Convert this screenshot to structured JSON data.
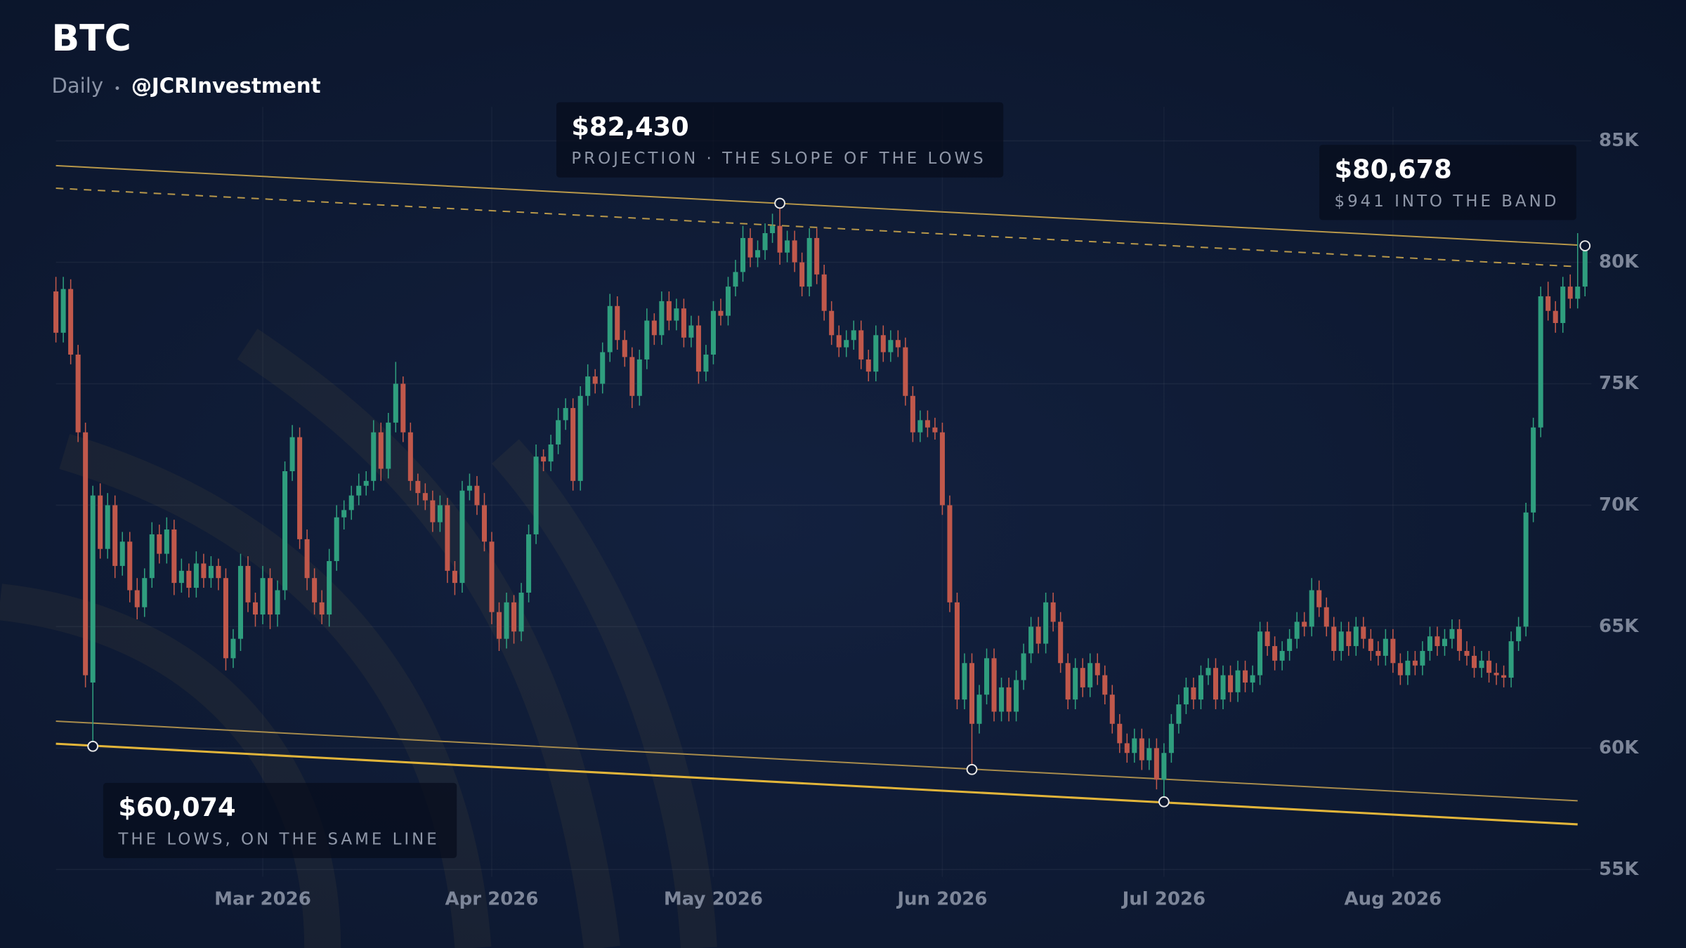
{
  "chart_data": {
    "type": "candlestick",
    "title": "BTC",
    "subtitle": "Daily",
    "source": "@JCRInvestment",
    "categories": [
      null,
      null,
      null,
      null,
      null,
      null,
      null,
      null,
      null,
      null,
      null,
      null,
      null,
      null,
      null,
      null,
      null,
      null,
      null,
      null,
      null,
      null,
      null,
      null,
      null,
      null,
      null,
      null,
      "Mar 2026",
      null,
      null,
      null,
      null,
      null,
      null,
      null,
      null,
      null,
      null,
      null,
      null,
      null,
      null,
      null,
      null,
      null,
      null,
      null,
      null,
      null,
      null,
      null,
      null,
      null,
      null,
      null,
      null,
      null,
      null,
      "Apr 2026",
      null,
      null,
      null,
      null,
      null,
      null,
      null,
      null,
      null,
      null,
      null,
      null,
      null,
      null,
      null,
      null,
      null,
      null,
      null,
      null,
      null,
      null,
      null,
      null,
      null,
      null,
      null,
      null,
      null,
      "May 2026",
      null,
      null,
      null,
      null,
      null,
      null,
      null,
      null,
      null,
      null,
      null,
      null,
      null,
      null,
      null,
      null,
      null,
      null,
      null,
      null,
      null,
      null,
      null,
      null,
      null,
      null,
      null,
      null,
      null,
      null,
      "Jun 2026",
      null,
      null,
      null,
      null,
      null,
      null,
      null,
      null,
      null,
      null,
      null,
      null,
      null,
      null,
      null,
      null,
      null,
      null,
      null,
      null,
      null,
      null,
      null,
      null,
      null,
      null,
      null,
      null,
      null,
      "Jul 2026",
      null,
      null,
      null,
      null,
      null,
      null,
      null,
      null,
      null,
      null,
      null,
      null,
      null,
      null,
      null,
      null,
      null,
      null,
      null,
      null,
      null,
      null,
      null,
      null,
      null,
      null,
      null,
      null,
      null,
      null,
      "Aug 2026",
      null,
      null,
      null,
      null,
      null,
      null,
      null,
      null,
      null,
      null,
      null,
      null,
      null,
      null,
      null,
      null,
      null,
      null,
      null,
      null,
      null,
      null,
      null,
      null,
      null,
      null
    ],
    "open": [
      78.8,
      77.1,
      78.9,
      76.2,
      73.0,
      62.7,
      70.4,
      68.2,
      70.0,
      67.5,
      68.5,
      66.5,
      65.8,
      67.0,
      68.8,
      68.0,
      69.0,
      66.8,
      67.3,
      66.6,
      67.6,
      67.0,
      67.5,
      67.0,
      63.7,
      64.5,
      67.5,
      66.0,
      65.5,
      67.0,
      65.5,
      66.5,
      71.4,
      72.8,
      68.6,
      67.0,
      66.0,
      65.5,
      67.7,
      69.5,
      69.8,
      70.4,
      70.8,
      71.0,
      73.0,
      71.5,
      73.4,
      75.0,
      73.0,
      71.0,
      70.5,
      70.2,
      69.3,
      70.0,
      67.3,
      66.8,
      70.6,
      70.8,
      70.0,
      68.5,
      65.6,
      64.5,
      66.0,
      64.8,
      66.4,
      68.8,
      72.0,
      71.8,
      72.5,
      73.5,
      74.0,
      71.0,
      74.5,
      75.3,
      75.0,
      76.3,
      78.2,
      76.8,
      76.1,
      74.5,
      76.0,
      77.6,
      77.0,
      78.4,
      77.6,
      78.1,
      76.9,
      77.4,
      75.5,
      76.2,
      78.0,
      77.8,
      79.0,
      79.6,
      81.0,
      80.2,
      80.5,
      81.2,
      81.5,
      80.4,
      80.9,
      80.0,
      79.0,
      81.0,
      79.5,
      78.0,
      77.0,
      76.5,
      76.8,
      77.2,
      76.0,
      75.5,
      77.0,
      76.3,
      76.8,
      76.5,
      74.5,
      73.0,
      73.5,
      73.2,
      73.0,
      70.0,
      66.0,
      62.0,
      63.5,
      61.0,
      62.2,
      63.7,
      61.5,
      62.5,
      61.5,
      62.8,
      63.9,
      65.0,
      64.3,
      66.0,
      65.2,
      63.5,
      62.0,
      63.3,
      62.5,
      63.5,
      63.0,
      62.2,
      61.0,
      60.2,
      59.8,
      60.4,
      59.5,
      60.0,
      58.7,
      59.8,
      61.0,
      61.8,
      62.5,
      62.0,
      63.0,
      63.3,
      62.0,
      63.0,
      62.3,
      63.2,
      62.7,
      63.0,
      64.8,
      64.2,
      63.6,
      64.0,
      64.5,
      65.2,
      65.0,
      66.5,
      65.8,
      65.0,
      64.0,
      64.8,
      64.2,
      65.0,
      64.5,
      64.0,
      63.8,
      64.5,
      63.5,
      63.0,
      63.6,
      63.4,
      64.0,
      64.6,
      64.2,
      64.5,
      64.9,
      64.0,
      63.8,
      63.3,
      63.6,
      63.1,
      63.0,
      62.9,
      64.4,
      65.0,
      69.7,
      73.2,
      78.6,
      78.0,
      77.5,
      79.0,
      78.5,
      79.0
    ],
    "high": [
      79.4,
      79.4,
      79.3,
      76.6,
      73.4,
      70.8,
      70.9,
      70.5,
      70.4,
      68.9,
      68.9,
      67.0,
      67.4,
      69.3,
      69.2,
      69.5,
      69.4,
      67.8,
      67.6,
      68.1,
      68.0,
      67.9,
      67.8,
      67.4,
      64.9,
      68.0,
      67.9,
      66.4,
      67.5,
      67.4,
      66.9,
      71.8,
      73.3,
      73.2,
      69.0,
      67.4,
      66.5,
      68.2,
      70.0,
      70.2,
      70.8,
      71.3,
      71.4,
      73.5,
      73.4,
      73.8,
      75.9,
      75.3,
      73.4,
      71.3,
      70.9,
      70.6,
      70.4,
      70.3,
      67.7,
      71.0,
      71.3,
      71.2,
      70.5,
      68.9,
      66.0,
      66.4,
      66.3,
      66.8,
      69.2,
      72.5,
      72.3,
      72.9,
      74.0,
      74.4,
      74.4,
      74.9,
      75.8,
      75.6,
      76.7,
      78.7,
      78.6,
      77.2,
      76.5,
      76.4,
      78.1,
      77.9,
      78.8,
      78.8,
      78.5,
      78.5,
      77.8,
      77.8,
      76.6,
      78.4,
      78.5,
      79.4,
      80.1,
      81.5,
      81.4,
      80.9,
      81.6,
      82.0,
      82.43,
      81.3,
      81.3,
      80.4,
      81.4,
      81.4,
      79.9,
      78.4,
      77.4,
      77.2,
      77.6,
      77.6,
      76.4,
      77.4,
      77.4,
      77.2,
      77.2,
      76.9,
      74.9,
      73.9,
      73.9,
      73.6,
      73.4,
      70.4,
      66.4,
      63.9,
      63.9,
      62.6,
      64.1,
      64.1,
      62.9,
      62.9,
      63.2,
      64.3,
      65.4,
      65.4,
      66.4,
      66.4,
      65.6,
      63.9,
      63.7,
      63.7,
      63.9,
      63.9,
      63.4,
      62.6,
      61.4,
      60.6,
      60.8,
      60.8,
      60.4,
      60.4,
      60.2,
      61.4,
      62.2,
      62.9,
      62.9,
      63.4,
      63.7,
      63.7,
      63.4,
      63.4,
      63.6,
      63.6,
      63.4,
      65.2,
      65.2,
      64.6,
      64.4,
      64.9,
      65.6,
      65.6,
      67.0,
      66.9,
      66.2,
      65.4,
      65.2,
      65.2,
      65.4,
      65.4,
      64.9,
      64.4,
      64.9,
      64.9,
      63.9,
      64.0,
      64.0,
      64.4,
      65.0,
      65.0,
      64.9,
      65.3,
      65.3,
      64.4,
      64.2,
      64.0,
      64.0,
      63.5,
      63.4,
      64.8,
      65.4,
      70.1,
      73.6,
      79.0,
      79.2,
      78.4,
      79.4,
      79.5,
      81.2,
      80.68
    ],
    "low": [
      76.7,
      76.7,
      75.8,
      72.6,
      62.5,
      60.07,
      67.8,
      67.8,
      67.0,
      67.1,
      66.0,
      65.3,
      65.4,
      66.6,
      67.6,
      67.6,
      66.3,
      66.4,
      66.2,
      66.2,
      66.6,
      66.6,
      66.5,
      63.2,
      63.3,
      64.0,
      65.6,
      65.0,
      65.1,
      64.9,
      65.0,
      66.1,
      71.0,
      68.2,
      66.5,
      65.5,
      65.1,
      65.0,
      67.3,
      69.0,
      69.4,
      70.0,
      70.4,
      70.6,
      71.0,
      71.1,
      73.0,
      72.6,
      70.6,
      70.0,
      69.8,
      68.9,
      68.9,
      66.8,
      66.3,
      66.4,
      70.2,
      69.6,
      68.1,
      65.1,
      64.0,
      64.1,
      64.3,
      64.4,
      66.0,
      68.4,
      71.4,
      71.4,
      72.1,
      73.1,
      70.6,
      70.6,
      74.1,
      74.6,
      74.6,
      75.9,
      76.4,
      75.7,
      74.0,
      74.1,
      75.6,
      76.6,
      76.6,
      77.2,
      77.2,
      76.5,
      76.5,
      75.0,
      75.1,
      75.8,
      77.4,
      77.4,
      78.6,
      79.2,
      79.8,
      79.8,
      80.1,
      80.8,
      79.9,
      80.0,
      79.6,
      78.6,
      78.6,
      79.1,
      77.6,
      76.6,
      76.1,
      76.1,
      76.4,
      75.6,
      75.1,
      75.1,
      75.9,
      75.9,
      76.1,
      74.1,
      72.6,
      72.6,
      72.8,
      72.7,
      69.6,
      65.6,
      61.6,
      61.6,
      59.1,
      60.6,
      61.8,
      61.1,
      61.1,
      61.1,
      61.1,
      62.4,
      63.5,
      63.9,
      63.9,
      64.8,
      63.1,
      61.6,
      61.6,
      62.1,
      62.1,
      62.6,
      61.8,
      60.6,
      59.8,
      59.4,
      59.4,
      59.1,
      59.1,
      58.3,
      57.79,
      59.4,
      60.6,
      61.4,
      61.6,
      61.6,
      62.6,
      61.6,
      61.6,
      61.9,
      61.9,
      62.3,
      62.3,
      62.6,
      63.8,
      63.2,
      63.2,
      63.6,
      64.1,
      64.6,
      64.6,
      65.4,
      64.6,
      63.6,
      63.6,
      63.8,
      63.8,
      64.1,
      63.6,
      63.4,
      63.4,
      63.1,
      62.6,
      62.6,
      63.0,
      63.0,
      63.6,
      63.8,
      63.8,
      64.1,
      63.6,
      63.4,
      62.9,
      62.9,
      62.7,
      62.6,
      62.5,
      62.5,
      64.0,
      64.6,
      69.3,
      72.8,
      77.6,
      77.1,
      77.1,
      78.1,
      78.1,
      78.6
    ],
    "close": [
      77.1,
      78.9,
      76.2,
      73.0,
      63.0,
      70.4,
      68.2,
      70.0,
      67.5,
      68.5,
      66.5,
      65.8,
      67.0,
      68.8,
      68.0,
      69.0,
      66.8,
      67.3,
      66.6,
      67.6,
      67.0,
      67.5,
      67.0,
      63.7,
      64.5,
      67.5,
      66.0,
      65.5,
      67.0,
      65.5,
      66.5,
      71.4,
      72.8,
      68.6,
      67.0,
      66.0,
      65.5,
      67.7,
      69.5,
      69.8,
      70.4,
      70.8,
      71.0,
      73.0,
      71.5,
      73.4,
      75.0,
      73.0,
      71.0,
      70.5,
      70.2,
      69.3,
      70.0,
      67.3,
      66.8,
      70.6,
      70.8,
      70.0,
      68.5,
      65.6,
      64.5,
      66.0,
      64.8,
      66.4,
      68.8,
      72.0,
      71.8,
      72.5,
      73.5,
      74.0,
      71.0,
      74.5,
      75.3,
      75.0,
      76.3,
      78.2,
      76.8,
      76.1,
      74.5,
      76.0,
      77.6,
      77.0,
      78.4,
      77.6,
      78.1,
      76.9,
      77.4,
      75.5,
      76.2,
      78.0,
      77.8,
      79.0,
      79.6,
      81.0,
      80.2,
      80.5,
      81.2,
      81.5,
      80.4,
      80.9,
      80.0,
      79.0,
      81.0,
      79.5,
      78.0,
      77.0,
      76.5,
      76.8,
      77.2,
      76.0,
      75.5,
      77.0,
      76.3,
      76.8,
      76.5,
      74.5,
      73.0,
      73.5,
      73.2,
      73.0,
      70.0,
      66.0,
      62.0,
      63.5,
      61.0,
      62.2,
      63.7,
      61.5,
      62.5,
      61.5,
      62.8,
      63.9,
      65.0,
      64.3,
      66.0,
      65.2,
      63.5,
      62.0,
      63.3,
      62.5,
      63.5,
      63.0,
      62.2,
      61.0,
      60.2,
      59.8,
      60.4,
      59.5,
      60.0,
      58.7,
      59.8,
      61.0,
      61.8,
      62.5,
      62.0,
      63.0,
      63.3,
      62.0,
      63.0,
      62.3,
      63.2,
      62.7,
      63.0,
      64.8,
      64.2,
      63.6,
      64.0,
      64.5,
      65.2,
      65.0,
      66.5,
      65.8,
      65.0,
      64.0,
      64.8,
      64.2,
      65.0,
      64.5,
      64.0,
      63.8,
      64.5,
      63.5,
      63.0,
      63.6,
      63.4,
      64.0,
      64.6,
      64.2,
      64.5,
      64.9,
      64.0,
      63.8,
      63.3,
      63.6,
      63.1,
      63.0,
      62.9,
      64.4,
      65.0,
      69.7,
      73.2,
      78.6,
      78.0,
      77.5,
      79.0,
      78.5,
      79.0,
      80.6
    ],
    "up_color": "#2f9e7e",
    "down_color": "#c0584b",
    "ylim": [
      54.7,
      86.4
    ],
    "yticks": [
      {
        "value": 55,
        "label": "55K"
      },
      {
        "value": 60,
        "label": "60K"
      },
      {
        "value": 65,
        "label": "65K"
      },
      {
        "value": 70,
        "label": "70K"
      },
      {
        "value": 75,
        "label": "75K"
      },
      {
        "value": 80,
        "label": "80K"
      },
      {
        "value": 85,
        "label": "85K"
      }
    ],
    "grid": true,
    "trendlines": [
      {
        "x": [
          0,
          206
        ],
        "values": [
          83.98,
          80.71
        ],
        "color": "#b8984a",
        "style": "solid"
      },
      {
        "x": [
          0,
          206
        ],
        "values": [
          83.05,
          79.82
        ],
        "color": "#b8984a",
        "style": "dashed"
      },
      {
        "x": [
          0,
          206
        ],
        "values": [
          61.11,
          57.83
        ],
        "color": "#a88c4c",
        "style": "solid"
      },
      {
        "x": [
          0,
          206
        ],
        "values": [
          60.18,
          56.86
        ],
        "color": "#e2b53a",
        "style": "bold"
      }
    ],
    "markers": {
      "x": [
        5,
        98,
        124,
        150,
        207
      ],
      "values": [
        60.074,
        82.43,
        59.12,
        57.79,
        80.678
      ],
      "value_labels": [
        "$60,074",
        "$82,430",
        null,
        null,
        "$80,678"
      ],
      "notes": [
        "THE LOWS, ON THE SAME LINE",
        "PROJECTION · THE SLOPE OF THE LOWS",
        null,
        null,
        "$941 INTO THE BAND"
      ]
    }
  }
}
